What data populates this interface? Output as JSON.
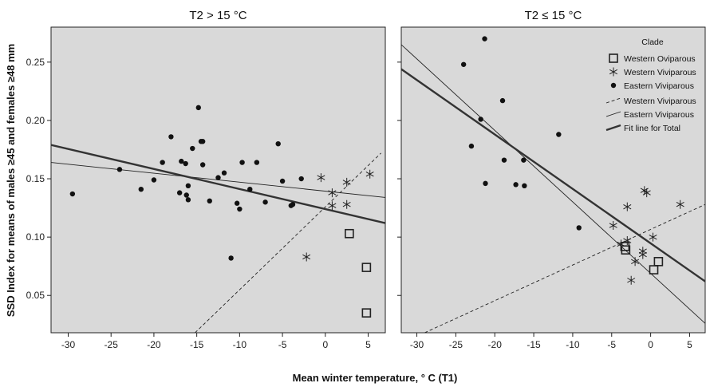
{
  "xlabel": "Mean winter temperature, ° C  (T1)",
  "ylabel": "SSD Index for means of males ≥45 and females ≥48 mm",
  "legend": {
    "title": "Clade",
    "items": [
      {
        "label": "Western Oviparous",
        "kind": "square"
      },
      {
        "label": "Western Viviparous",
        "kind": "star"
      },
      {
        "label": "Eastern Viviparous",
        "kind": "dot"
      },
      {
        "label": "Western Viviparous",
        "kind": "dashed-line"
      },
      {
        "label": "Eastern Viviparous",
        "kind": "thin-line"
      },
      {
        "label": "Fit line for Total",
        "kind": "thick-line"
      }
    ]
  },
  "chart_data": [
    {
      "type": "scatter",
      "title": "T2 > 15 °C",
      "xlim": [
        -32,
        7
      ],
      "ylim": [
        0.018,
        0.28
      ],
      "xticks": [
        -30,
        -25,
        -20,
        -15,
        -10,
        -5,
        0,
        5
      ],
      "yticks": [
        0.05,
        0.1,
        0.15,
        0.2,
        0.25
      ],
      "ytick_labels": [
        "0.05",
        "0.10",
        "0.15",
        "0.20",
        "0.25"
      ],
      "series": [
        {
          "name": "Western Oviparous",
          "marker": "square",
          "points": [
            [
              2.8,
              0.103
            ],
            [
              4.8,
              0.074
            ],
            [
              4.8,
              0.035
            ]
          ]
        },
        {
          "name": "Western Viviparous",
          "marker": "star",
          "points": [
            [
              -0.5,
              0.151
            ],
            [
              0.8,
              0.138
            ],
            [
              2.5,
              0.147
            ],
            [
              5.2,
              0.154
            ],
            [
              0.8,
              0.127
            ],
            [
              2.5,
              0.128
            ],
            [
              -2.2,
              0.083
            ]
          ]
        },
        {
          "name": "Eastern Viviparous",
          "marker": "dot",
          "points": [
            [
              -29.5,
              0.137
            ],
            [
              -24.0,
              0.158
            ],
            [
              -21.5,
              0.141
            ],
            [
              -20.0,
              0.149
            ],
            [
              -19.0,
              0.164
            ],
            [
              -18.0,
              0.186
            ],
            [
              -17.0,
              0.138
            ],
            [
              -16.8,
              0.165
            ],
            [
              -16.3,
              0.163
            ],
            [
              -16.2,
              0.136
            ],
            [
              -16.0,
              0.144
            ],
            [
              -16.0,
              0.132
            ],
            [
              -15.5,
              0.176
            ],
            [
              -14.8,
              0.211
            ],
            [
              -14.5,
              0.182
            ],
            [
              -14.3,
              0.182
            ],
            [
              -14.3,
              0.162
            ],
            [
              -13.5,
              0.131
            ],
            [
              -12.5,
              0.151
            ],
            [
              -11.8,
              0.155
            ],
            [
              -11.0,
              0.082
            ],
            [
              -10.3,
              0.129
            ],
            [
              -10.0,
              0.124
            ],
            [
              -9.7,
              0.164
            ],
            [
              -8.8,
              0.141
            ],
            [
              -8.0,
              0.164
            ],
            [
              -7.0,
              0.13
            ],
            [
              -5.5,
              0.18
            ],
            [
              -5.0,
              0.148
            ],
            [
              -4.0,
              0.127
            ],
            [
              -3.8,
              0.128
            ],
            [
              -2.8,
              0.15
            ]
          ]
        }
      ],
      "fit_lines": [
        {
          "name": "Western Viviparous",
          "style": "dashed",
          "from": [
            -15.2,
            0.018
          ],
          "to": [
            6.5,
            0.172
          ]
        },
        {
          "name": "Eastern Viviparous",
          "style": "thin",
          "from": [
            -32,
            0.164
          ],
          "to": [
            7,
            0.134
          ]
        },
        {
          "name": "Fit line for Total",
          "style": "thick",
          "from": [
            -32,
            0.179
          ],
          "to": [
            7,
            0.112
          ]
        }
      ]
    },
    {
      "type": "scatter",
      "title": "T2 ≤ 15 °C",
      "xlim": [
        -32,
        7
      ],
      "ylim": [
        0.018,
        0.28
      ],
      "xticks": [
        -30,
        -25,
        -20,
        -15,
        -10,
        -5,
        0,
        5
      ],
      "yticks": [
        0.05,
        0.1,
        0.15,
        0.2,
        0.25
      ],
      "series": [
        {
          "name": "Western Oviparous",
          "marker": "square",
          "points": [
            [
              -3.3,
              0.092
            ],
            [
              -3.2,
              0.089
            ],
            [
              0.4,
              0.072
            ],
            [
              1.0,
              0.079
            ]
          ]
        },
        {
          "name": "Western Viviparous",
          "marker": "star",
          "points": [
            [
              -4.8,
              0.11
            ],
            [
              -3.8,
              0.094
            ],
            [
              -3.0,
              0.126
            ],
            [
              -3.0,
              0.097
            ],
            [
              -2.5,
              0.063
            ],
            [
              -2.0,
              0.079
            ],
            [
              -1.0,
              0.085
            ],
            [
              -1.0,
              0.088
            ],
            [
              -0.8,
              0.14
            ],
            [
              -0.5,
              0.138
            ],
            [
              0.3,
              0.1
            ],
            [
              3.8,
              0.128
            ]
          ]
        },
        {
          "name": "Eastern Viviparous",
          "marker": "dot",
          "points": [
            [
              -24.0,
              0.248
            ],
            [
              -23.0,
              0.178
            ],
            [
              -21.8,
              0.201
            ],
            [
              -21.3,
              0.27
            ],
            [
              -21.2,
              0.146
            ],
            [
              -19.0,
              0.217
            ],
            [
              -18.8,
              0.166
            ],
            [
              -17.3,
              0.145
            ],
            [
              -16.3,
              0.166
            ],
            [
              -16.2,
              0.144
            ],
            [
              -11.8,
              0.188
            ],
            [
              -9.2,
              0.108
            ]
          ]
        }
      ],
      "fit_lines": [
        {
          "name": "Western Viviparous",
          "style": "dashed",
          "from": [
            -29,
            0.018
          ],
          "to": [
            7,
            0.128
          ]
        },
        {
          "name": "Eastern Viviparous",
          "style": "thin",
          "from": [
            -32,
            0.265
          ],
          "to": [
            7,
            0.026
          ]
        },
        {
          "name": "Fit line for Total",
          "style": "thick",
          "from": [
            -32,
            0.244
          ],
          "to": [
            7,
            0.062
          ]
        }
      ]
    }
  ]
}
